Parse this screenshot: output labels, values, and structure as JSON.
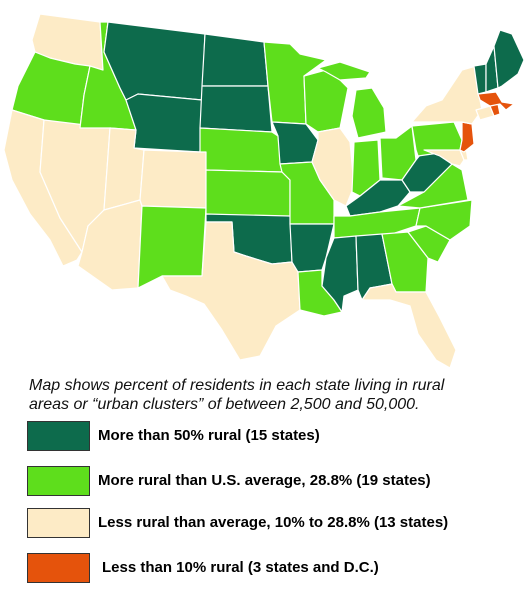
{
  "colors": {
    "rural_majority": "#0d6b4c",
    "above_average": "#5ede1c",
    "below_average": "#fdebc6",
    "under_ten": "#e5530c"
  },
  "caption": {
    "line1": "Map shows percent of residents in each state living in rural",
    "line2": "areas or “urban clusters” of between 2,500 and 50,000."
  },
  "legend": [
    {
      "label": "More than 50% rural (15 states)",
      "category": "rural_majority"
    },
    {
      "label": "More rural than U.S. average, 28.8% (19 states)",
      "category": "above_average"
    },
    {
      "label": "Less rural than average, 10% to 28.8% (13 states)",
      "category": "below_average"
    },
    {
      "label": "Less than 10% rural (3 states and D.C.)",
      "category": "under_ten"
    }
  ],
  "states": {
    "WA": "below_average",
    "OR": "above_average",
    "CA": "below_average",
    "NV": "below_average",
    "ID": "above_average",
    "MT": "rural_majority",
    "WY": "rural_majority",
    "UT": "below_average",
    "AZ": "below_average",
    "CO": "below_average",
    "NM": "above_average",
    "ND": "rural_majority",
    "SD": "rural_majority",
    "NE": "above_average",
    "KS": "above_average",
    "OK": "rural_majority",
    "TX": "below_average",
    "MN": "above_average",
    "IA": "rural_majority",
    "MO": "above_average",
    "AR": "rural_majority",
    "LA": "above_average",
    "WI": "above_average",
    "IL": "below_average",
    "MI": "above_average",
    "IN": "above_average",
    "OH": "above_average",
    "KY": "rural_majority",
    "TN": "above_average",
    "MS": "rural_majority",
    "AL": "rural_majority",
    "GA": "above_average",
    "FL": "below_average",
    "SC": "above_average",
    "NC": "above_average",
    "VA": "above_average",
    "WV": "rural_majority",
    "PA": "above_average",
    "NY": "below_average",
    "MD": "below_average",
    "DE": "below_average",
    "NJ": "under_ten",
    "CT": "below_average",
    "RI": "under_ten",
    "MA": "under_ten",
    "VT": "rural_majority",
    "NH": "rural_majority",
    "ME": "rural_majority"
  }
}
